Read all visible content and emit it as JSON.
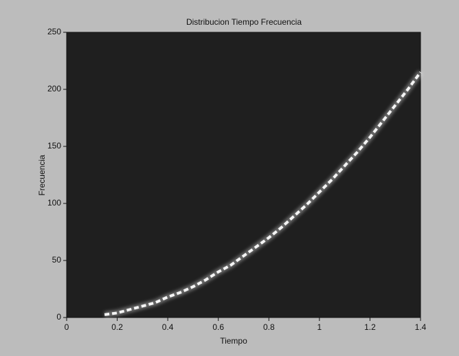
{
  "chart_data": {
    "type": "line",
    "title": "Distribucion Tiempo Frecuencia",
    "x_label": "Tiempo",
    "y_label": "Frecuencia",
    "x": [
      0.15,
      0.2,
      0.25,
      0.3,
      0.35,
      0.4,
      0.45,
      0.5,
      0.55,
      0.6,
      0.65,
      0.7,
      0.75,
      0.8,
      0.85,
      0.9,
      0.95,
      1.0,
      1.05,
      1.1,
      1.15,
      1.2,
      1.25,
      1.3,
      1.35,
      1.4
    ],
    "series": [
      {
        "color": "#f4f4f4",
        "values": [
          2.5,
          4,
          7,
          10,
          13,
          18,
          22,
          27,
          33,
          40,
          46,
          54,
          62,
          70,
          79,
          89,
          99,
          110,
          121,
          133,
          145,
          158,
          172,
          186,
          200,
          215
        ]
      }
    ],
    "xlim": [
      0,
      1.4
    ],
    "xticks": [
      0,
      0.2,
      0.4,
      0.6,
      0.8,
      1,
      1.2,
      1.4
    ],
    "ylim": [
      0,
      250
    ],
    "yticks": [
      0,
      50,
      100,
      150,
      200,
      250
    ],
    "plot_background": "#1f1f1f"
  }
}
